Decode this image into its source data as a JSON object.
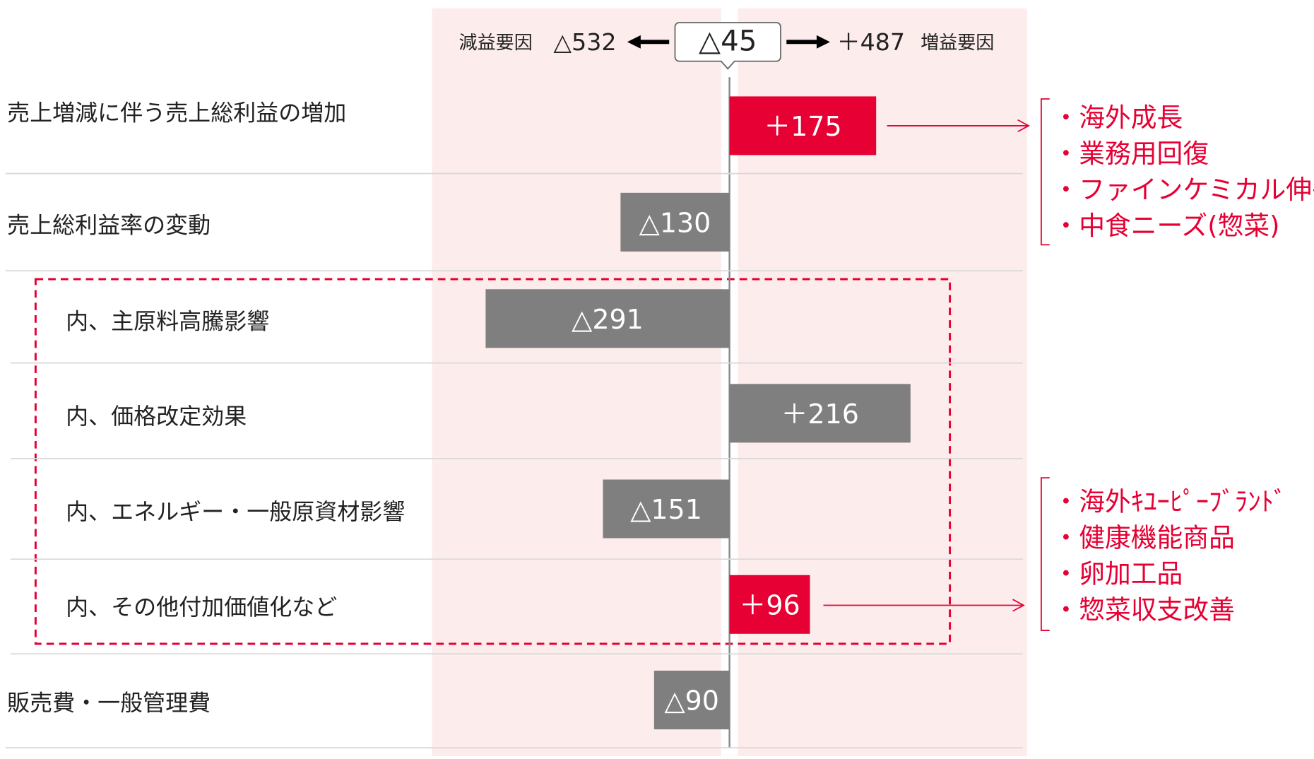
{
  "chart_data": {
    "type": "diverging_bar",
    "summary": {
      "left_label": "減益要因",
      "left_total": "△532",
      "net": "△45",
      "right_total": "＋487",
      "right_label": "増益要因"
    },
    "categories": [
      "売上増減に伴う売上総利益の増加",
      "売上総利益率の変動",
      "内、主原料高騰影響",
      "内、価格改定効果",
      "内、エネルギー・一般原資材影響",
      "内、その他付加価値化など",
      "販売費・一般管理費"
    ],
    "values": [
      175,
      -130,
      -291,
      216,
      -151,
      96,
      -90
    ],
    "value_labels": [
      "＋175",
      "△130",
      "△291",
      "＋216",
      "△151",
      "＋96",
      "△90"
    ],
    "colors": [
      "#e60033",
      "#7f7f7f",
      "#7f7f7f",
      "#7f7f7f",
      "#7f7f7f",
      "#e60033",
      "#7f7f7f"
    ],
    "annotations": [
      {
        "items": [
          "・海外成長",
          "・業務用回復",
          "・ファインケミカル伸長",
          "・中食ニーズ(惣菜)"
        ]
      },
      {
        "items": [
          "・海外ｷﾕｰﾋﾟｰﾌﾞﾗﾝﾄﾞ",
          "・健康機能商品",
          "・卵加工品",
          "・惣菜収支改善"
        ]
      }
    ]
  }
}
